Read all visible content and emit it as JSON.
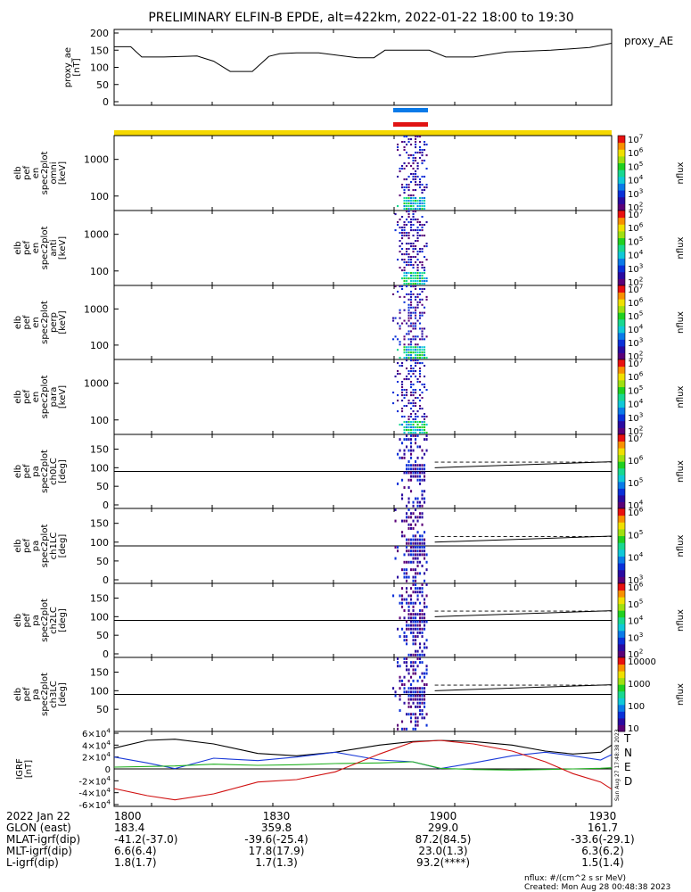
{
  "title": "PRELIMINARY ELFIN-B EPDE, alt=422km, 2022-01-22 18:00 to 19:30",
  "colors": {
    "bar_blue": "#0a7ae8",
    "bar_red": "#e01414",
    "bar_yellow": "#f5d800",
    "ae_line": "#000000",
    "T": "#000000",
    "N": "#1a3ad8",
    "E": "#20b020",
    "D": "#d01010"
  },
  "colormap": [
    "#ffffff",
    "#5a0078",
    "#2a0aa0",
    "#0a30d8",
    "#0a7ae8",
    "#10c8d8",
    "#18d890",
    "#20d020",
    "#a0e010",
    "#f0e000",
    "#f89000",
    "#e81010"
  ],
  "chart_data": [
    {
      "id": "ae",
      "type": "line",
      "ylabel": "proxy_ae\n[nT]",
      "legend": "proxy_AE",
      "ylim": [
        0,
        200
      ],
      "yticks": [
        "0",
        "50",
        "100",
        "150",
        "200"
      ],
      "x": [
        0,
        3,
        5,
        9,
        15,
        18,
        21,
        25,
        28,
        30,
        33,
        37,
        44,
        47,
        49,
        57,
        60,
        65,
        71,
        79,
        86,
        90
      ],
      "y": [
        160,
        160,
        130,
        130,
        133,
        118,
        88,
        88,
        132,
        140,
        142,
        142,
        128,
        128,
        150,
        150,
        130,
        130,
        145,
        150,
        158,
        170
      ]
    },
    {
      "id": "omni",
      "type": "heatmap",
      "ylabel": [
        "elb",
        "pef",
        "en",
        "spec2plot",
        "omni",
        "[keV]"
      ],
      "scale": "log",
      "yticks": [
        "100",
        "1000"
      ],
      "cbar_ticks": [
        "10^2",
        "10^3",
        "10^4",
        "10^5",
        "10^6",
        "10^7"
      ],
      "cbar_label": "nflux"
    },
    {
      "id": "anti",
      "type": "heatmap",
      "ylabel": [
        "elb",
        "pef",
        "en",
        "spec2plot",
        "anti",
        "[keV]"
      ],
      "scale": "log",
      "yticks": [
        "100",
        "1000"
      ],
      "cbar_ticks": [
        "10^2",
        "10^3",
        "10^4",
        "10^5",
        "10^6",
        "10^7"
      ],
      "cbar_label": "nflux"
    },
    {
      "id": "perp",
      "type": "heatmap",
      "ylabel": [
        "elb",
        "pef",
        "en",
        "spec2plot",
        "perp",
        "[keV]"
      ],
      "scale": "log",
      "yticks": [
        "100",
        "1000"
      ],
      "cbar_ticks": [
        "10^2",
        "10^3",
        "10^4",
        "10^5",
        "10^6",
        "10^7"
      ],
      "cbar_label": "nflux"
    },
    {
      "id": "para",
      "type": "heatmap",
      "ylabel": [
        "elb",
        "pef",
        "en",
        "spec2plot",
        "para",
        "[keV]"
      ],
      "scale": "log",
      "yticks": [
        "100",
        "1000"
      ],
      "cbar_ticks": [
        "10^2",
        "10^3",
        "10^4",
        "10^5",
        "10^6",
        "10^7"
      ],
      "cbar_label": "nflux"
    },
    {
      "id": "ch0",
      "type": "heatmap",
      "ylabel": [
        "elb",
        "pef",
        "pa",
        "spec2plot",
        "ch0LC",
        "[deg]"
      ],
      "ylim": [
        0,
        180
      ],
      "yticks": [
        "0",
        "50",
        "100",
        "150"
      ],
      "cbar_ticks": [
        "10^4",
        "10^5",
        "10^6",
        "10^7"
      ],
      "cbar_label": "nflux"
    },
    {
      "id": "ch1",
      "type": "heatmap",
      "ylabel": [
        "elb",
        "pef",
        "pa",
        "spec2plot",
        "ch1LC",
        "[deg]"
      ],
      "ylim": [
        0,
        180
      ],
      "yticks": [
        "0",
        "50",
        "100",
        "150"
      ],
      "cbar_ticks": [
        "10^3",
        "10^4",
        "10^5",
        "10^6"
      ],
      "cbar_label": "nflux"
    },
    {
      "id": "ch2",
      "type": "heatmap",
      "ylabel": [
        "elb",
        "pef",
        "pa",
        "spec2plot",
        "ch2LC",
        "[deg]"
      ],
      "ylim": [
        0,
        180
      ],
      "yticks": [
        "0",
        "50",
        "100",
        "150"
      ],
      "cbar_ticks": [
        "10^2",
        "10^3",
        "10^4",
        "10^5",
        "10^6"
      ],
      "cbar_label": "nflux"
    },
    {
      "id": "ch3",
      "type": "heatmap",
      "ylabel": [
        "elb",
        "pef",
        "pa",
        "spec2plot",
        "ch3LC",
        "[deg]"
      ],
      "ylim": [
        0,
        180
      ],
      "yticks": [
        "50",
        "100",
        "150"
      ],
      "cbar_ticks": [
        "10",
        "100",
        "1000",
        "10000"
      ],
      "cbar_label": "nflux"
    },
    {
      "id": "igrf",
      "type": "line",
      "ylabel": "IGRF\n[nT]",
      "ylim": [
        -60000,
        60000
      ],
      "yticks": [
        "-6×10^4",
        "-4×10^4",
        "-2×10^4",
        "0",
        "2×10^4",
        "4×10^4",
        "6×10^4"
      ],
      "legend": [
        "T",
        "N",
        "E",
        "D"
      ],
      "x": [
        0,
        6,
        11,
        18,
        26,
        33,
        40,
        48,
        54,
        59,
        65,
        72,
        78,
        83,
        88,
        90
      ],
      "series": [
        {
          "name": "T",
          "values": [
            35000,
            48000,
            50000,
            42000,
            26000,
            22000,
            28000,
            40000,
            46000,
            48000,
            46000,
            40000,
            30000,
            25000,
            28000,
            40000
          ]
        },
        {
          "name": "N",
          "values": [
            20000,
            10000,
            500,
            18000,
            14000,
            20000,
            28000,
            15000,
            12000,
            500,
            10000,
            22000,
            28000,
            22000,
            15000,
            24000
          ]
        },
        {
          "name": "E",
          "values": [
            3000,
            4000,
            5000,
            8000,
            6000,
            7000,
            9000,
            10000,
            12000,
            1000,
            -1000,
            -2000,
            -1000,
            0,
            1000,
            2000
          ]
        },
        {
          "name": "D",
          "values": [
            -33000,
            -45000,
            -52000,
            -42000,
            -22000,
            -18000,
            -5000,
            25000,
            45000,
            48000,
            42000,
            30000,
            12000,
            -8000,
            -22000,
            -34000
          ]
        }
      ]
    }
  ],
  "xaxis": {
    "ticks": [
      "1800",
      "1830",
      "1900",
      "1930"
    ],
    "rows": [
      {
        "label": "2022 Jan 22",
        "values": [
          "1800",
          "1830",
          "1900",
          "1930"
        ]
      },
      {
        "label": "GLON (east)",
        "values": [
          "183.4",
          "359.8",
          "299.0",
          "161.7"
        ]
      },
      {
        "label": "MLAT-igrf(dip)",
        "values": [
          "-41.2(-37.0)",
          "-39.6(-25.4)",
          "87.2(84.5)",
          "-33.6(-29.1)"
        ]
      },
      {
        "label": "MLT-igrf(dip)",
        "values": [
          "6.6(6.4)",
          "17.8(17.9)",
          "23.0(1.3)",
          "6.3(6.2)"
        ]
      },
      {
        "label": "L-igrf(dip)",
        "values": [
          "1.8(1.7)",
          "1.7(1.3)",
          "93.2(****)",
          "1.5(1.4)"
        ]
      }
    ]
  },
  "footer": {
    "units": "nflux: #/(cm^2 s sr MeV)",
    "created": "Created: Mon Aug 28 00:48:38 2023",
    "side_stamp": "Sun Aug 27 17:48:38 2023"
  }
}
